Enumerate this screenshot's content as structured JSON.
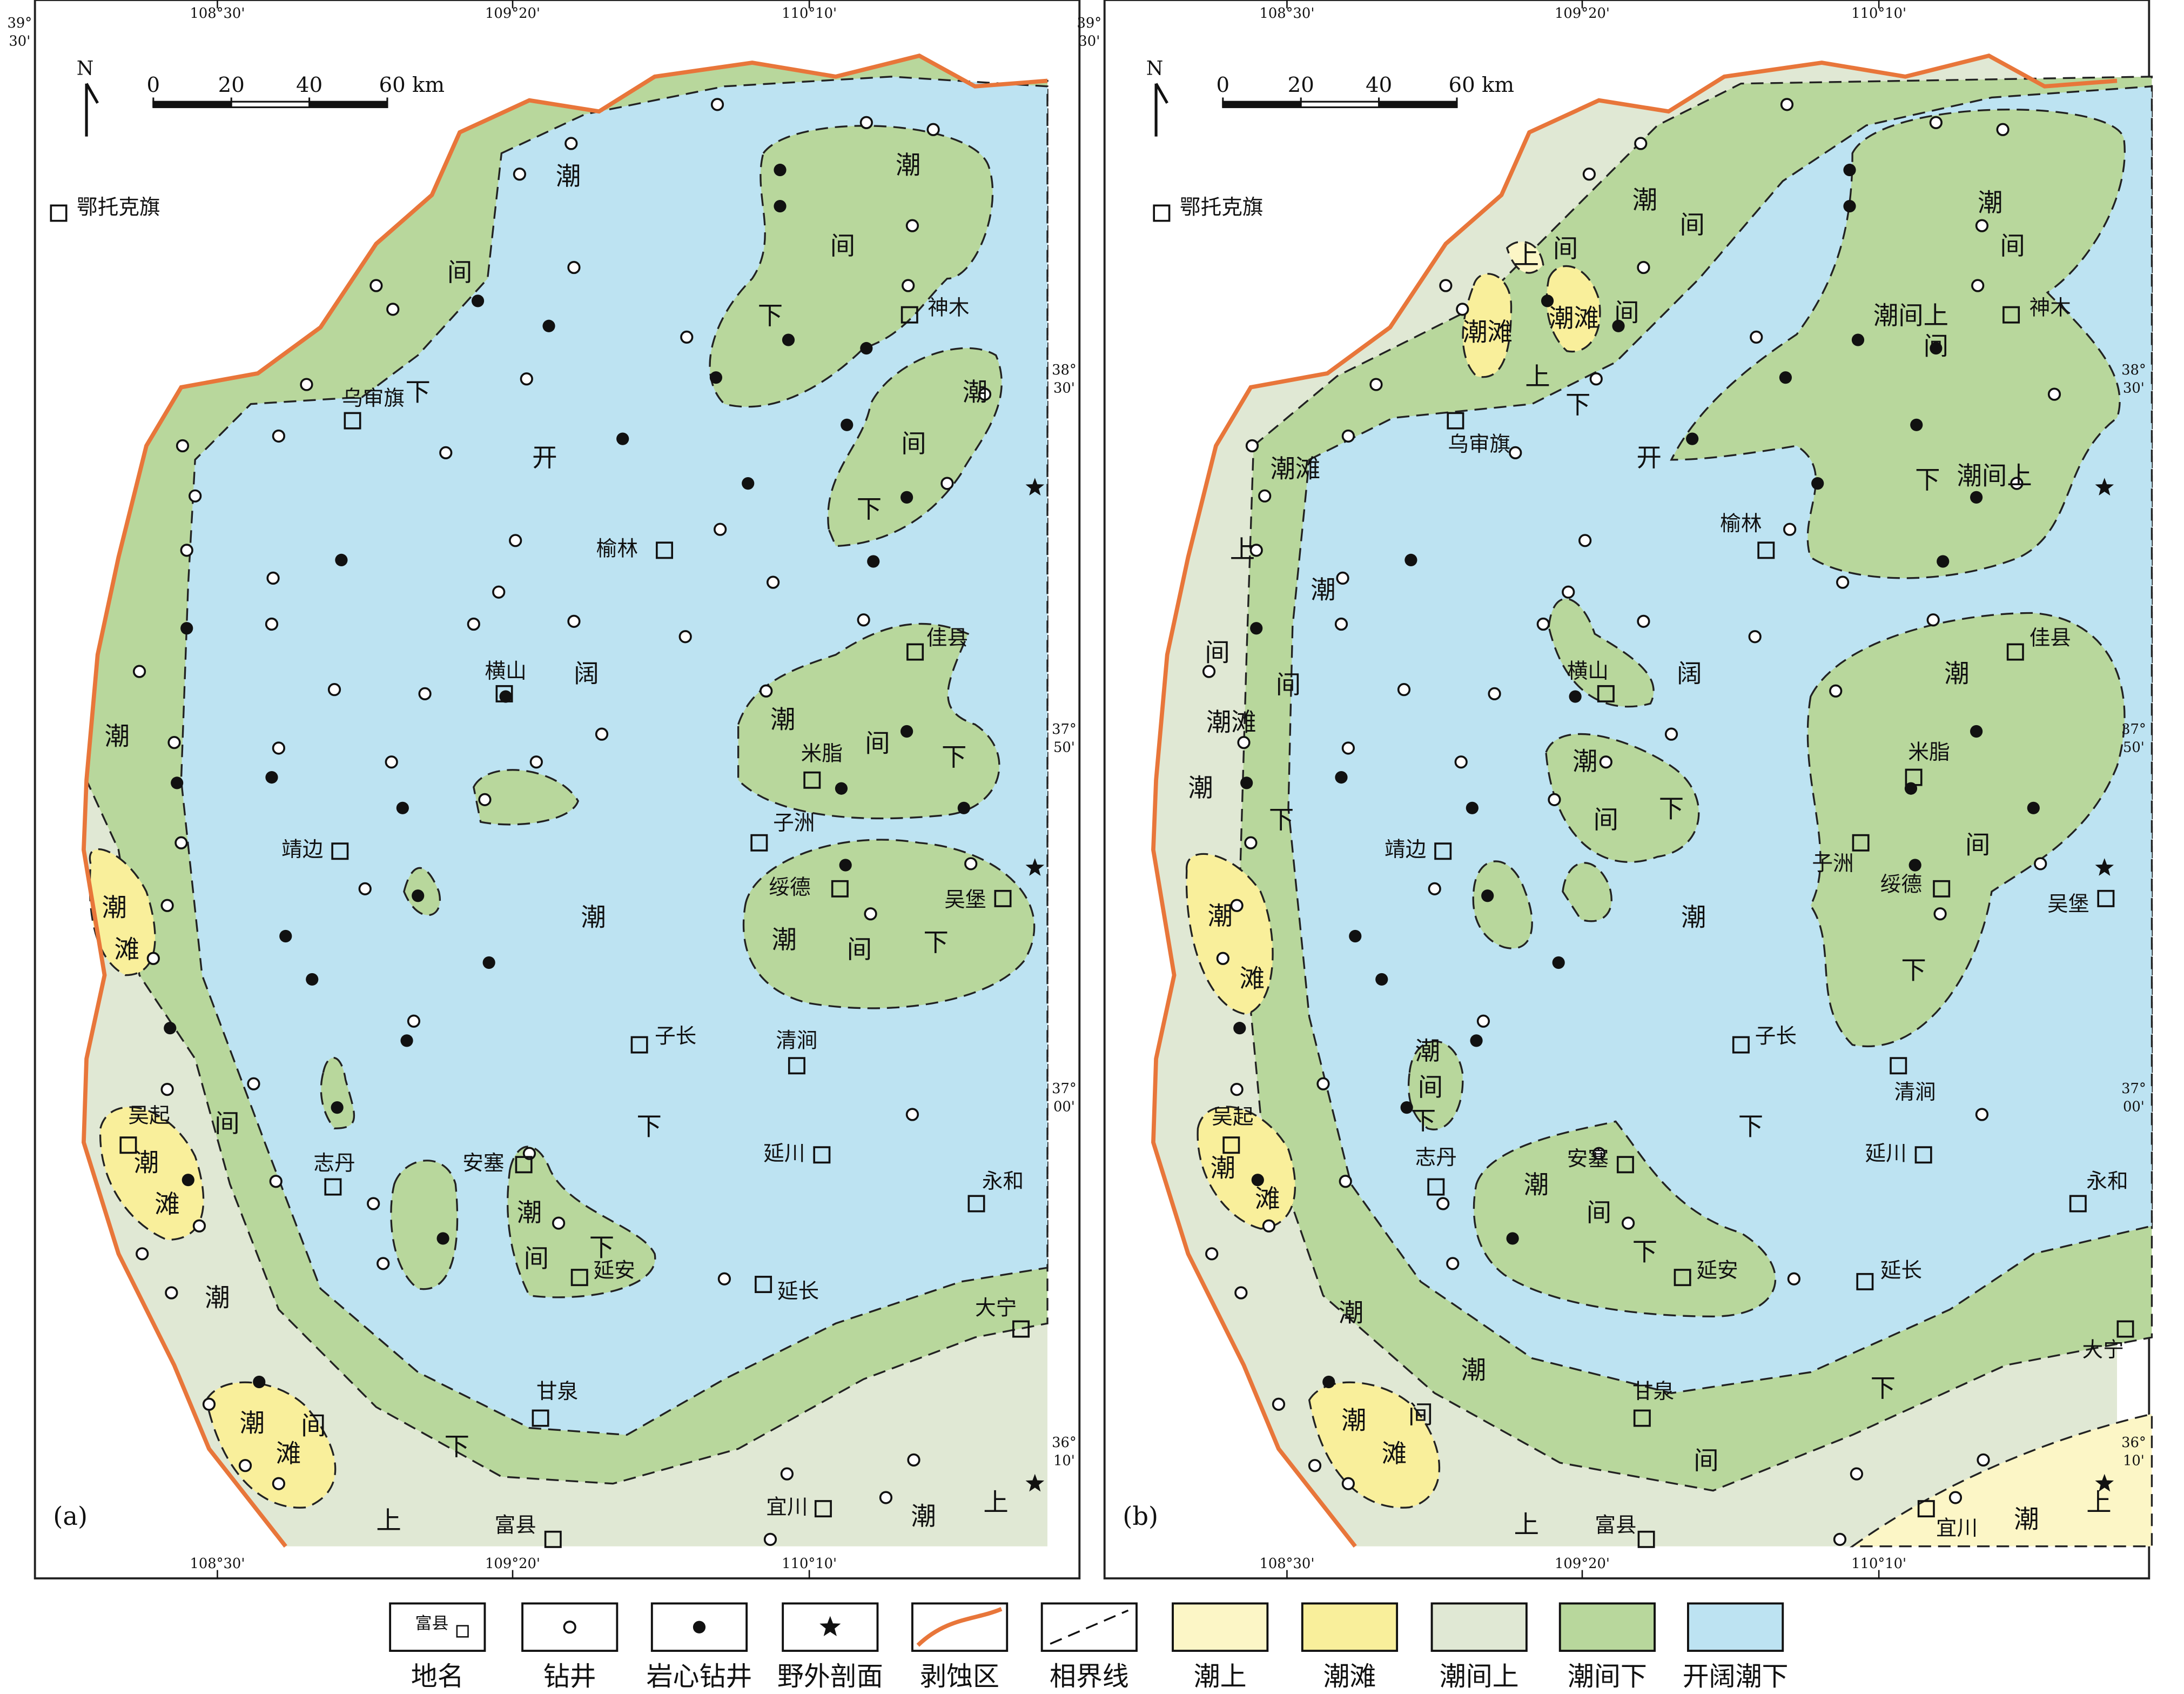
{
  "panels": [
    {
      "label": "(a)",
      "north": "N",
      "scale": [
        "0",
        "20",
        "40",
        "60 km"
      ],
      "lon_top": [
        "108°30'",
        "109°20'",
        "110°10'"
      ],
      "lon_bottom": [
        "108°30'",
        "109°20'",
        "110°10'"
      ],
      "lat_top": {
        "deg": "39°",
        "min": "30'"
      },
      "lat_right": [
        {
          "deg": "38°",
          "min": "30'"
        },
        {
          "deg": "37°",
          "min": "50'"
        },
        {
          "deg": "37°",
          "min": "00'"
        },
        {
          "deg": "36°",
          "min": "10'"
        }
      ],
      "places": [
        "鄂托克旗",
        "乌审旗",
        "神木",
        "榆林",
        "佳县",
        "横山",
        "米脂",
        "子洲",
        "靖边",
        "绥德",
        "吴堡",
        "子长",
        "清涧",
        "吴起",
        "志丹",
        "安塞",
        "延川",
        "永和",
        "延安",
        "延长",
        "大宁",
        "甘泉",
        "宜川",
        "富县"
      ],
      "facies_labels": [
        "潮",
        "间",
        "下",
        "潮",
        "间",
        "下",
        "潮",
        "间",
        "下",
        "开",
        "阔",
        "潮",
        "下",
        "潮",
        "间",
        "潮",
        "下",
        "上",
        "潮",
        "间",
        "下",
        "潮",
        "间",
        "下",
        "潮",
        "间",
        "下",
        "潮",
        "滩",
        "潮",
        "滩",
        "潮",
        "间",
        "滩",
        "潮",
        "上"
      ]
    },
    {
      "label": "(b)",
      "north": "N",
      "scale": [
        "0",
        "20",
        "40",
        "60 km"
      ],
      "lon_top": [
        "108°30'",
        "109°20'",
        "110°10'"
      ],
      "lon_bottom": [
        "108°30'",
        "109°20'",
        "110°10'"
      ],
      "lat_top": {
        "deg": "39°",
        "min": "30'"
      },
      "lat_right": [
        {
          "deg": "38°",
          "min": "30'"
        },
        {
          "deg": "37°",
          "min": "50'"
        },
        {
          "deg": "37°",
          "min": "00'"
        },
        {
          "deg": "36°",
          "min": "10'"
        }
      ],
      "places": [
        "鄂托克旗",
        "乌审旗",
        "神木",
        "榆林",
        "佳县",
        "横山",
        "米脂",
        "子洲",
        "靖边",
        "绥德",
        "吴堡",
        "子长",
        "清涧",
        "吴起",
        "志丹",
        "安塞",
        "延川",
        "永和",
        "延安",
        "延长",
        "大宁",
        "甘泉",
        "宜川",
        "富县"
      ],
      "facies_labels": [
        "潮",
        "间",
        "上",
        "间",
        "潮滩",
        "潮滩",
        "间",
        "上",
        "下",
        "开",
        "潮",
        "间",
        "潮间上",
        "间",
        "潮间上",
        "下",
        "潮滩",
        "上",
        "潮",
        "间",
        "间",
        "潮滩",
        "潮",
        "下",
        "阔",
        "潮",
        "潮",
        "间",
        "下",
        "间",
        "潮",
        "下",
        "潮",
        "间",
        "下",
        "下",
        "潮",
        "间",
        "下",
        "潮",
        "滩",
        "潮",
        "滩",
        "潮",
        "潮",
        "下",
        "间",
        "潮",
        "滩",
        "间",
        "上",
        "潮",
        "上"
      ]
    }
  ],
  "legend": [
    {
      "label": "地名",
      "sample": "富县"
    },
    {
      "label": "钻井"
    },
    {
      "label": "岩心钻井"
    },
    {
      "label": "野外剖面"
    },
    {
      "label": "剥蚀区"
    },
    {
      "label": "相界线"
    },
    {
      "label": "潮上"
    },
    {
      "label": "潮滩"
    },
    {
      "label": "潮间上"
    },
    {
      "label": "潮间下"
    },
    {
      "label": "开阔潮下"
    }
  ]
}
